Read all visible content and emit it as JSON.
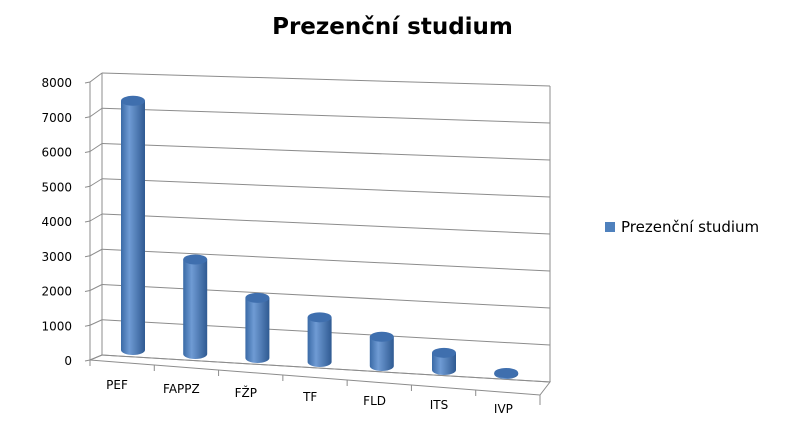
{
  "chart_data": {
    "type": "bar",
    "style": "3d-cylinder",
    "title": "Prezenční studium",
    "categories": [
      "PEF",
      "FAPPZ",
      "FŽP",
      "TF",
      "FLD",
      "ITS",
      "IVP"
    ],
    "series": [
      {
        "name": "Prezenční studium",
        "values": [
          7250,
          2750,
          1750,
          1300,
          850,
          500,
          30
        ],
        "color": "#4f81bd"
      }
    ],
    "yticks": [
      0,
      1000,
      2000,
      3000,
      4000,
      5000,
      6000,
      7000,
      8000
    ],
    "ylim": [
      0,
      8000
    ],
    "grid": true,
    "legend": "right"
  }
}
